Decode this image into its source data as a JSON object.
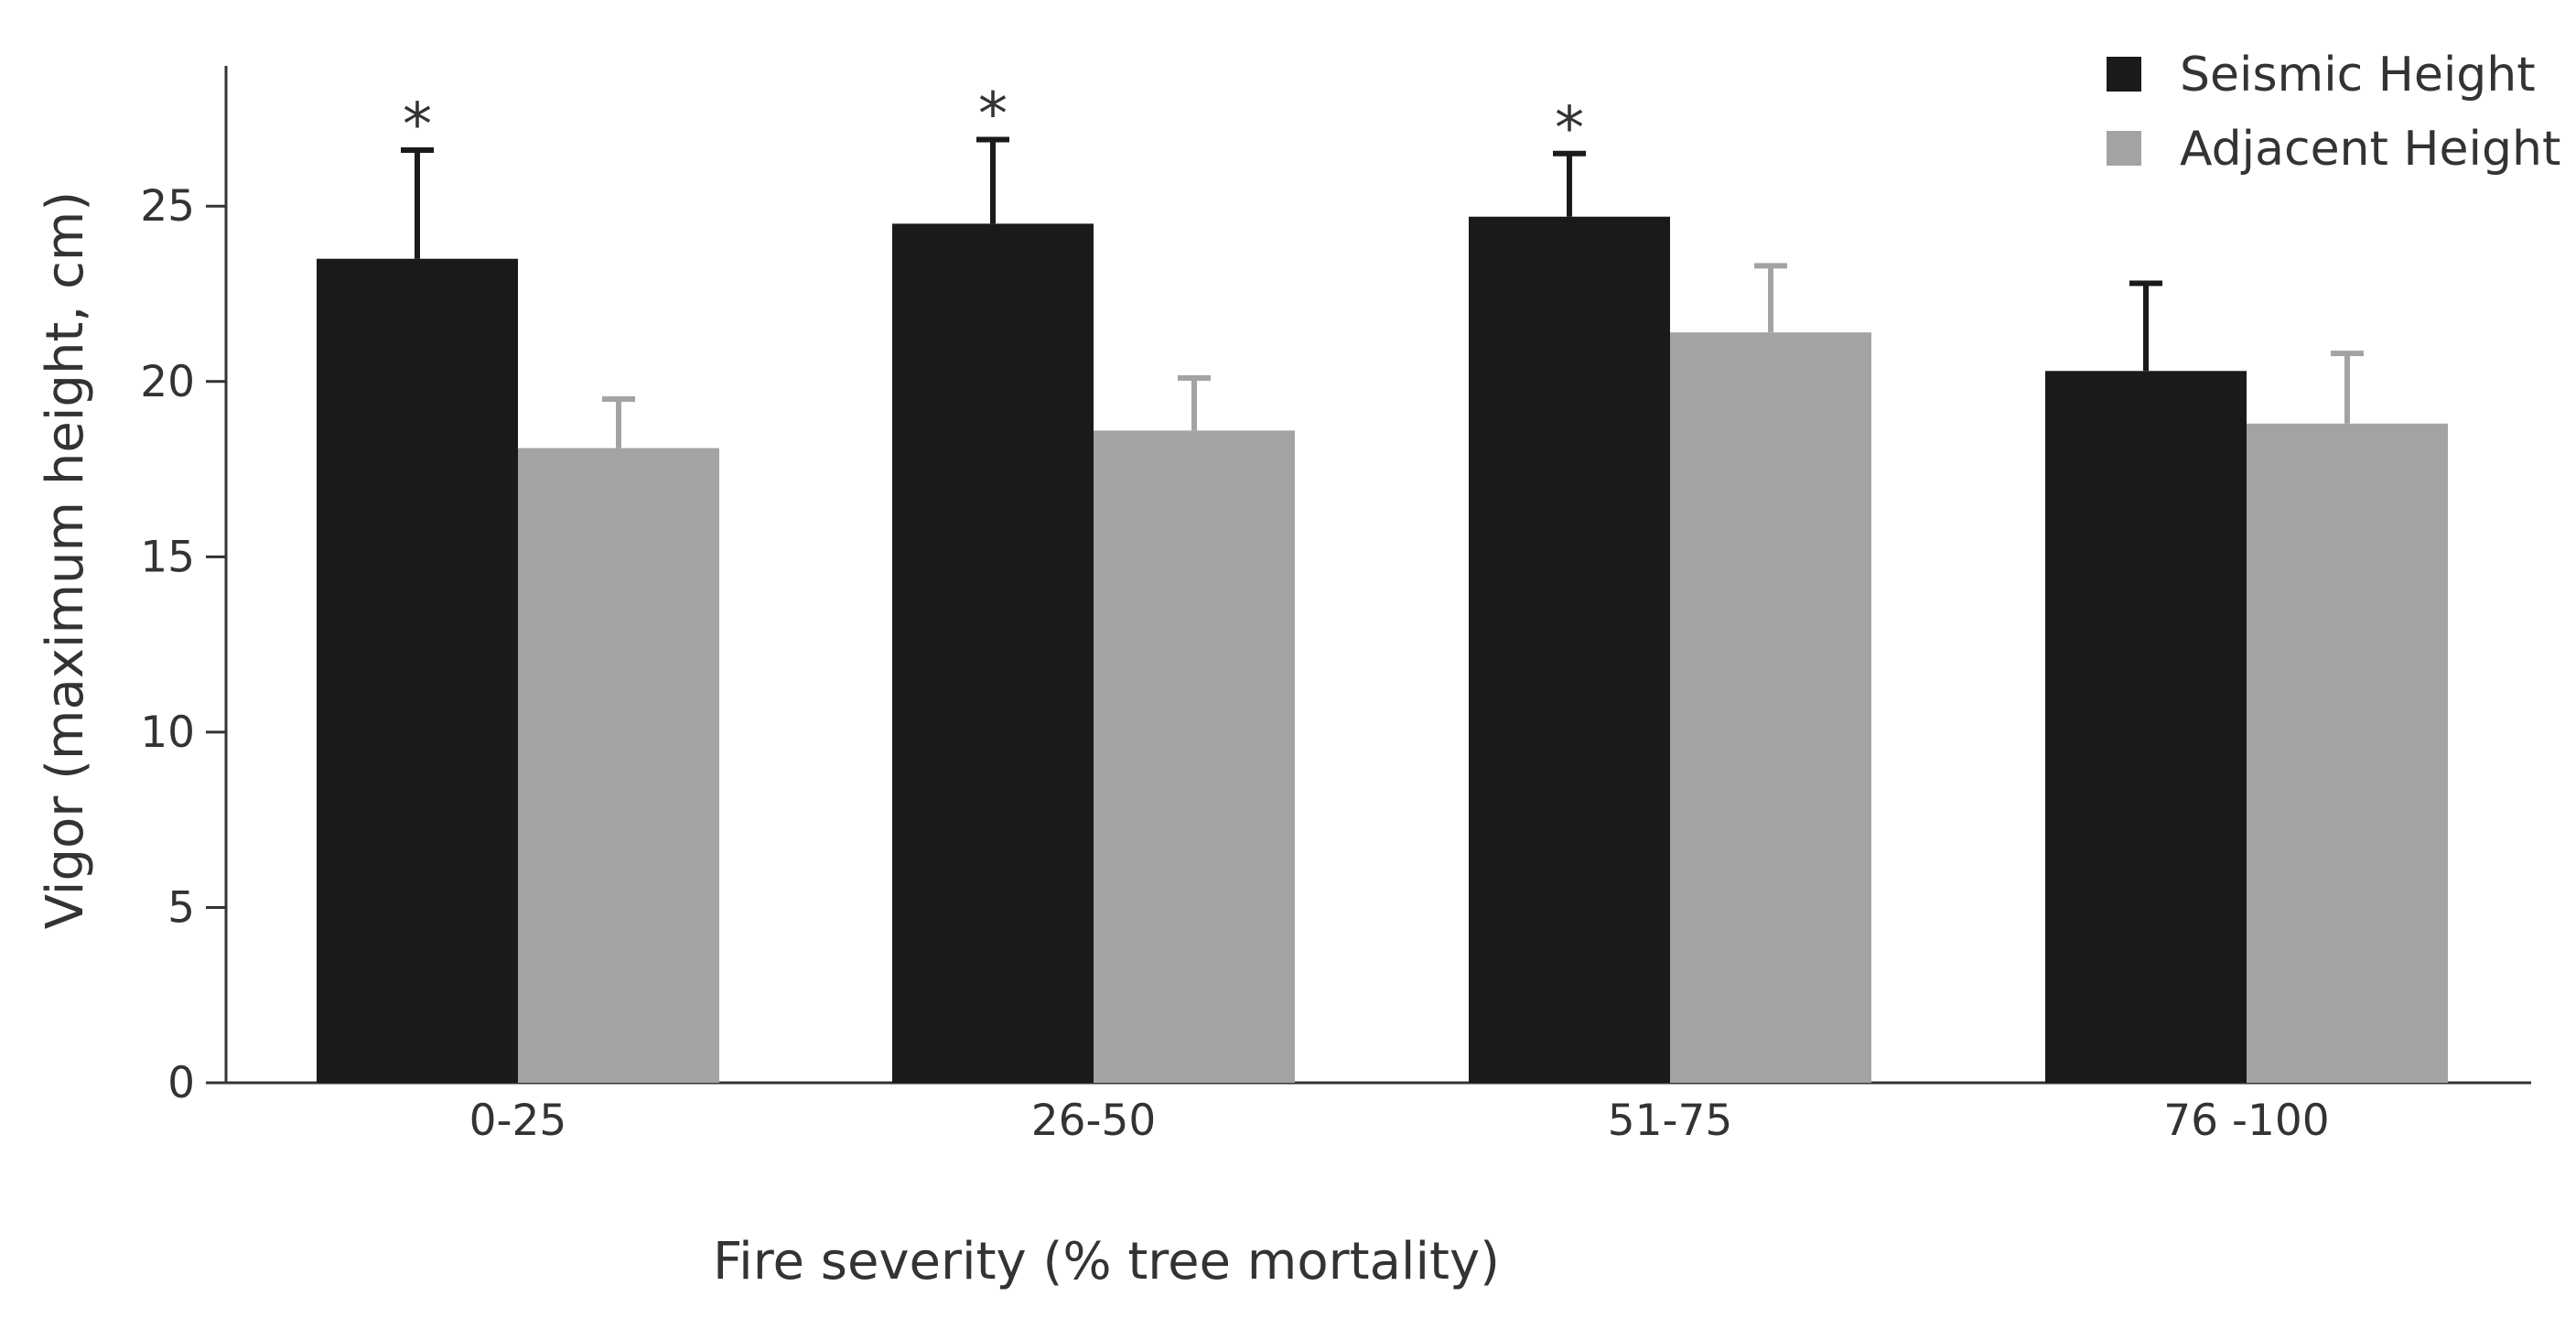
{
  "chart_data": {
    "type": "bar",
    "title": "",
    "xlabel": "Fire severity (% tree mortality)",
    "ylabel": "Vigor (maximum height, cm)",
    "ylim": [
      0,
      29
    ],
    "yticks": [
      0,
      5,
      10,
      15,
      20,
      25
    ],
    "categories": [
      "0-25",
      "26-50",
      "51-75",
      "76 -100"
    ],
    "series": [
      {
        "name": "Seismic Height",
        "color": "#1a1a1a",
        "values": [
          23.5,
          24.5,
          24.7,
          20.3
        ],
        "errors": [
          3.1,
          2.4,
          1.8,
          2.5
        ],
        "significance": [
          "*",
          "*",
          "*",
          ""
        ]
      },
      {
        "name": "Adjacent Height",
        "color": "#a3a3a3",
        "values": [
          18.1,
          18.6,
          21.4,
          18.8
        ],
        "errors": [
          1.4,
          1.5,
          1.9,
          2.0
        ],
        "significance": [
          "",
          "",
          "",
          ""
        ]
      }
    ],
    "legend_position": "top-right",
    "grid": false
  }
}
